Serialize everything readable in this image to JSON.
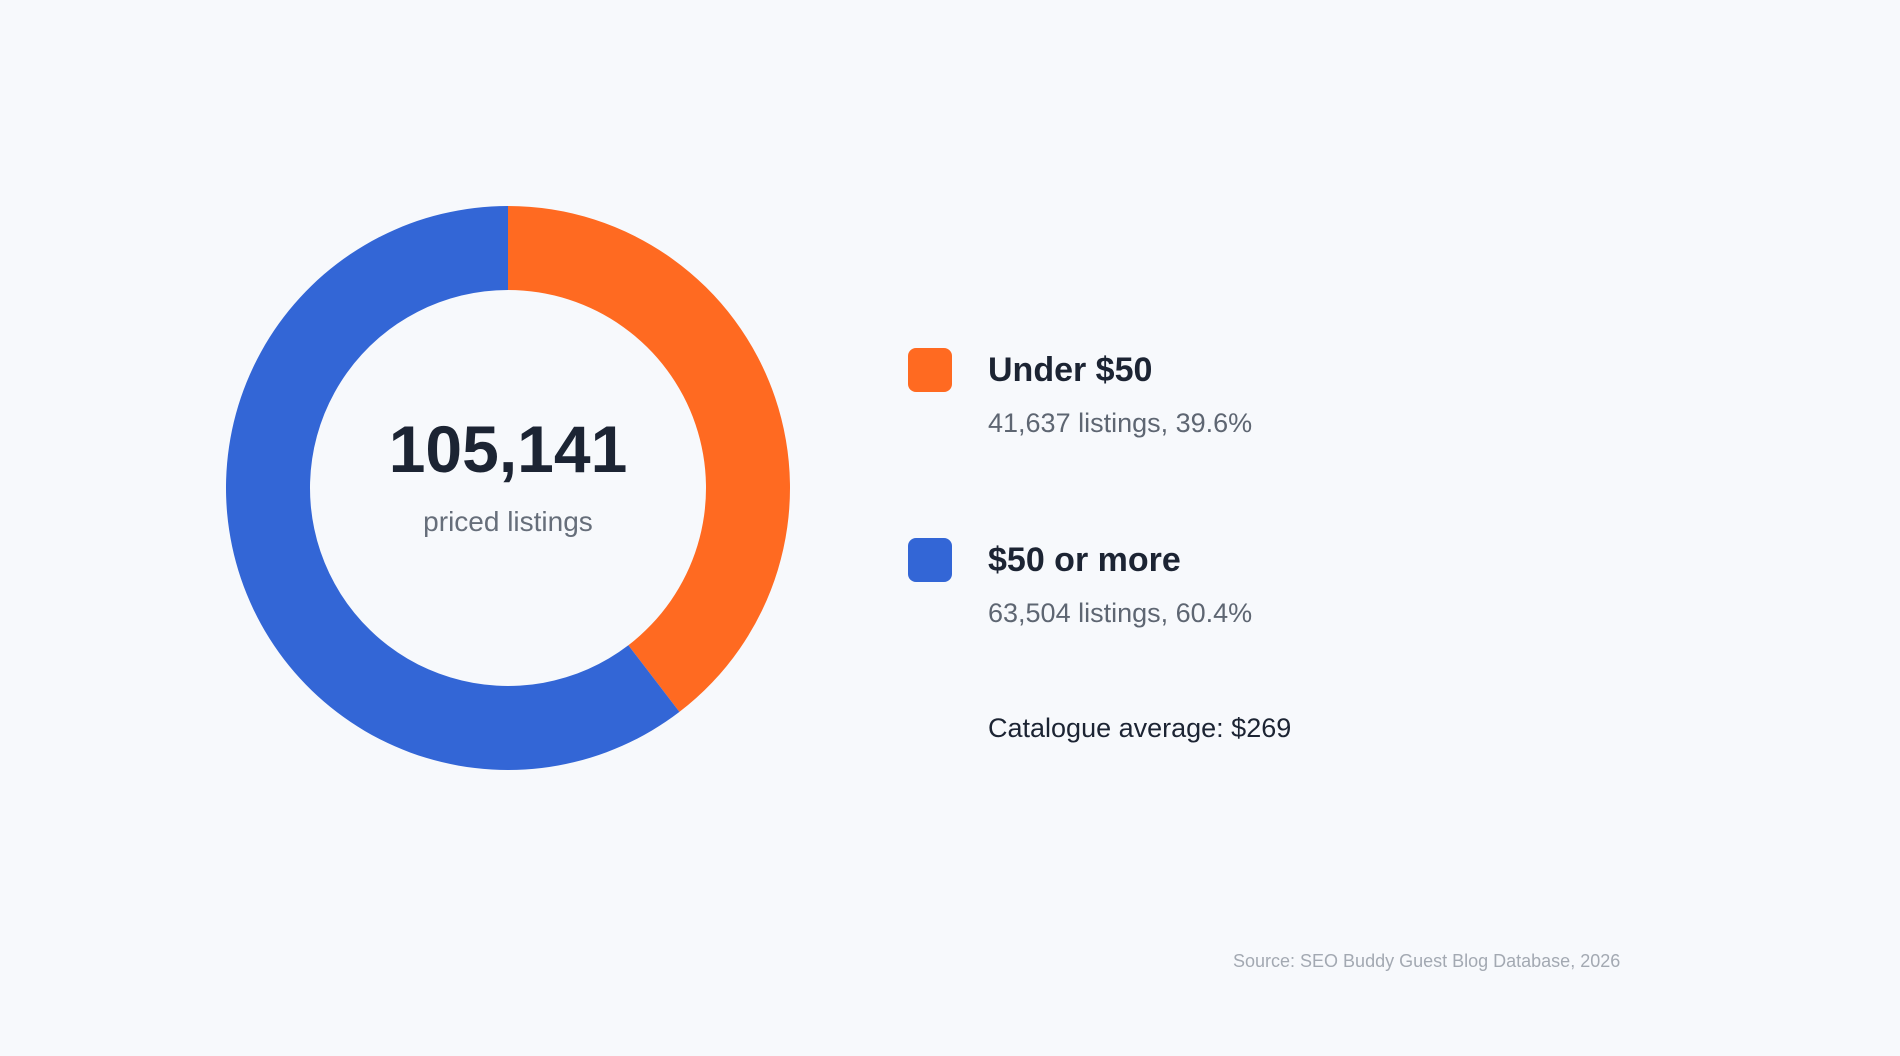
{
  "chart_data": {
    "type": "pie",
    "variant": "donut",
    "center": {
      "total": "105,141",
      "label": "priced listings"
    },
    "slices": [
      {
        "name": "Under $50",
        "value": 41637,
        "percent": 39.6,
        "detail": "41,637 listings, 39.6%",
        "color": "#ff6a21"
      },
      {
        "name": "$50 or more",
        "value": 63504,
        "percent": 60.4,
        "detail": "63,504 listings, 60.4%",
        "color": "#3366d6"
      }
    ],
    "legend_position": "right",
    "average_note": "Catalogue average: $269",
    "source": "Source: SEO Buddy Guest Blog Database, 2026"
  }
}
